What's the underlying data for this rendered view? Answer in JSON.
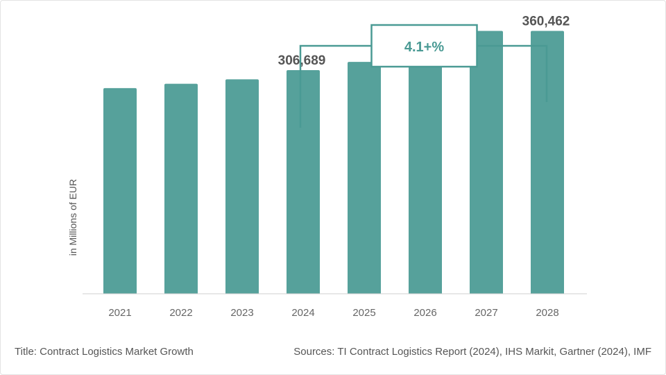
{
  "chart_data": {
    "type": "bar",
    "categories": [
      "2021",
      "2022",
      "2023",
      "2024",
      "2025",
      "2026",
      "2027",
      "2028"
    ],
    "values": [
      282000,
      288000,
      294000,
      306689,
      318000,
      330000,
      360462,
      360462
    ],
    "ylabel": "in Millions of EUR",
    "ylim": [
      0,
      380000
    ],
    "labeled_values": {
      "2024": "306,689",
      "2028": "360,462"
    },
    "annotation": {
      "text": "4.1+%",
      "from": "2024",
      "to": "2028"
    },
    "bar_color": "#56a19b",
    "annotation_color": "#4a9a94",
    "grid": false
  },
  "footer": {
    "title": "Title: Contract Logistics Market Growth",
    "sources": "Sources: TI Contract Logistics Report (2024), IHS Markit, Gartner (2024), IMF"
  }
}
